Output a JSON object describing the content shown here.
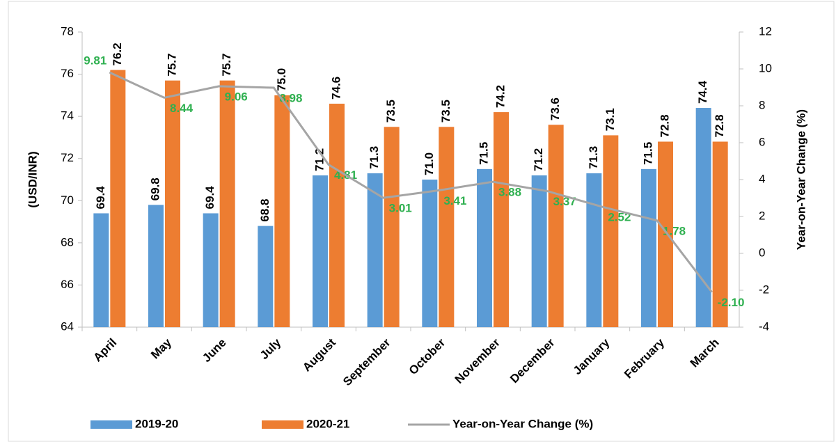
{
  "chart_data": {
    "type": "bar-line",
    "categories": [
      "April",
      "May",
      "June",
      "July",
      "August",
      "September",
      "October",
      "November",
      "December",
      "January",
      "February",
      "March"
    ],
    "y_label": "(USD/INR)",
    "y2_label": "Year-on-Year Change (%)",
    "ylim": [
      64,
      78
    ],
    "yticks": [
      64,
      66,
      68,
      70,
      72,
      74,
      76,
      78
    ],
    "y2lim": [
      -4,
      12
    ],
    "y2ticks": [
      -4,
      -2,
      0,
      2,
      4,
      6,
      8,
      10,
      12
    ],
    "series": [
      {
        "name": "2019-20",
        "color": "#5b9bd5",
        "kind": "bar",
        "values": [
          69.4,
          69.8,
          69.4,
          68.8,
          71.2,
          71.3,
          71.0,
          71.5,
          71.2,
          71.3,
          71.5,
          74.4
        ],
        "value_labels": [
          "69.4",
          "69.8",
          "69.4",
          "68.8",
          "71.2",
          "71.3",
          "71.0",
          "71.5",
          "71.2",
          "71.3",
          "71.5",
          "74.4"
        ]
      },
      {
        "name": "2020-21",
        "color": "#ed7d31",
        "kind": "bar",
        "values": [
          76.2,
          75.7,
          75.7,
          75.0,
          74.6,
          73.5,
          73.5,
          74.2,
          73.6,
          73.1,
          72.8,
          72.8
        ],
        "value_labels": [
          "76.2",
          "75.7",
          "75.7",
          "75.0",
          "74.6",
          "73.5",
          "73.5",
          "74.2",
          "73.6",
          "73.1",
          "72.8",
          "72.8"
        ]
      },
      {
        "name": "Year-on-Year Change (%)",
        "color": "#a5a5a5",
        "kind": "line",
        "axis": "y2",
        "values": [
          9.81,
          8.44,
          9.06,
          8.98,
          4.81,
          3.01,
          3.41,
          3.88,
          3.37,
          2.52,
          1.78,
          -2.1
        ],
        "value_labels": [
          "9.81",
          "8.44",
          "9.06",
          "8.98",
          "4.81",
          "3.01",
          "3.41",
          "3.88",
          "3.37",
          "2.52",
          "1.78",
          "-2.10"
        ]
      }
    ]
  }
}
